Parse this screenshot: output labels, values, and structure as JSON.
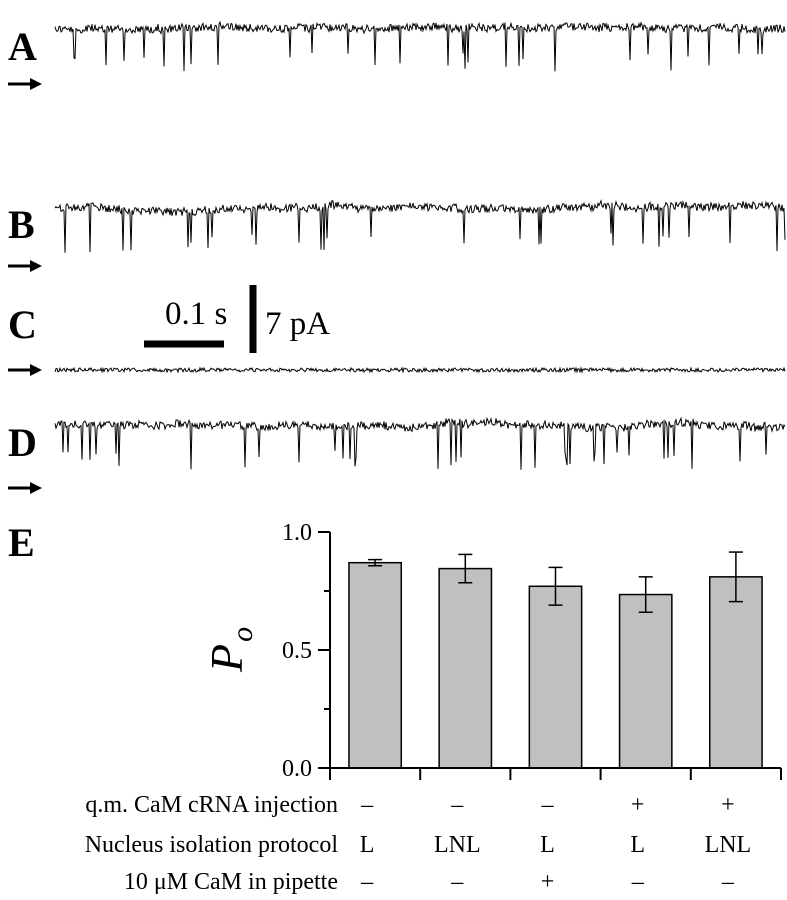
{
  "traces": {
    "panels": [
      {
        "label": "A",
        "open_level": 0.0,
        "closed_dips": true,
        "noise": 1.0
      },
      {
        "label": "B",
        "open_level": 0.0,
        "closed_dips": true,
        "noise": 1.0
      },
      {
        "label": "C",
        "open_level": 0.0,
        "closed_dips": false,
        "noise": 0.3
      },
      {
        "label": "D",
        "open_level": 0.0,
        "closed_dips": true,
        "noise": 1.0
      }
    ],
    "scale_bar": {
      "time_label": "0.1 s",
      "current_label": "7 pA"
    }
  },
  "chart_data": {
    "type": "bar",
    "panel_label": "E",
    "ylabel": "P",
    "ylabel_subscript": "o",
    "ylim": [
      0.0,
      1.0
    ],
    "yticks": [
      "0.0",
      "0.5",
      "1.0"
    ],
    "values": [
      0.87,
      0.845,
      0.77,
      0.735,
      0.81
    ],
    "errors": [
      0.013,
      0.06,
      0.08,
      0.075,
      0.105
    ],
    "bar_color": "#c0c0c0",
    "grid": false,
    "conditions": {
      "rows": [
        {
          "label": "q.m. CaM cRNA injection",
          "values": [
            "–",
            "–",
            "–",
            "+",
            "+"
          ]
        },
        {
          "label": "Nucleus isolation protocol",
          "values": [
            "L",
            "LNL",
            "L",
            "L",
            "LNL"
          ]
        },
        {
          "label": "10 μM CaM in pipette",
          "values": [
            "–",
            "–",
            "+",
            "–",
            "–"
          ]
        }
      ]
    }
  }
}
